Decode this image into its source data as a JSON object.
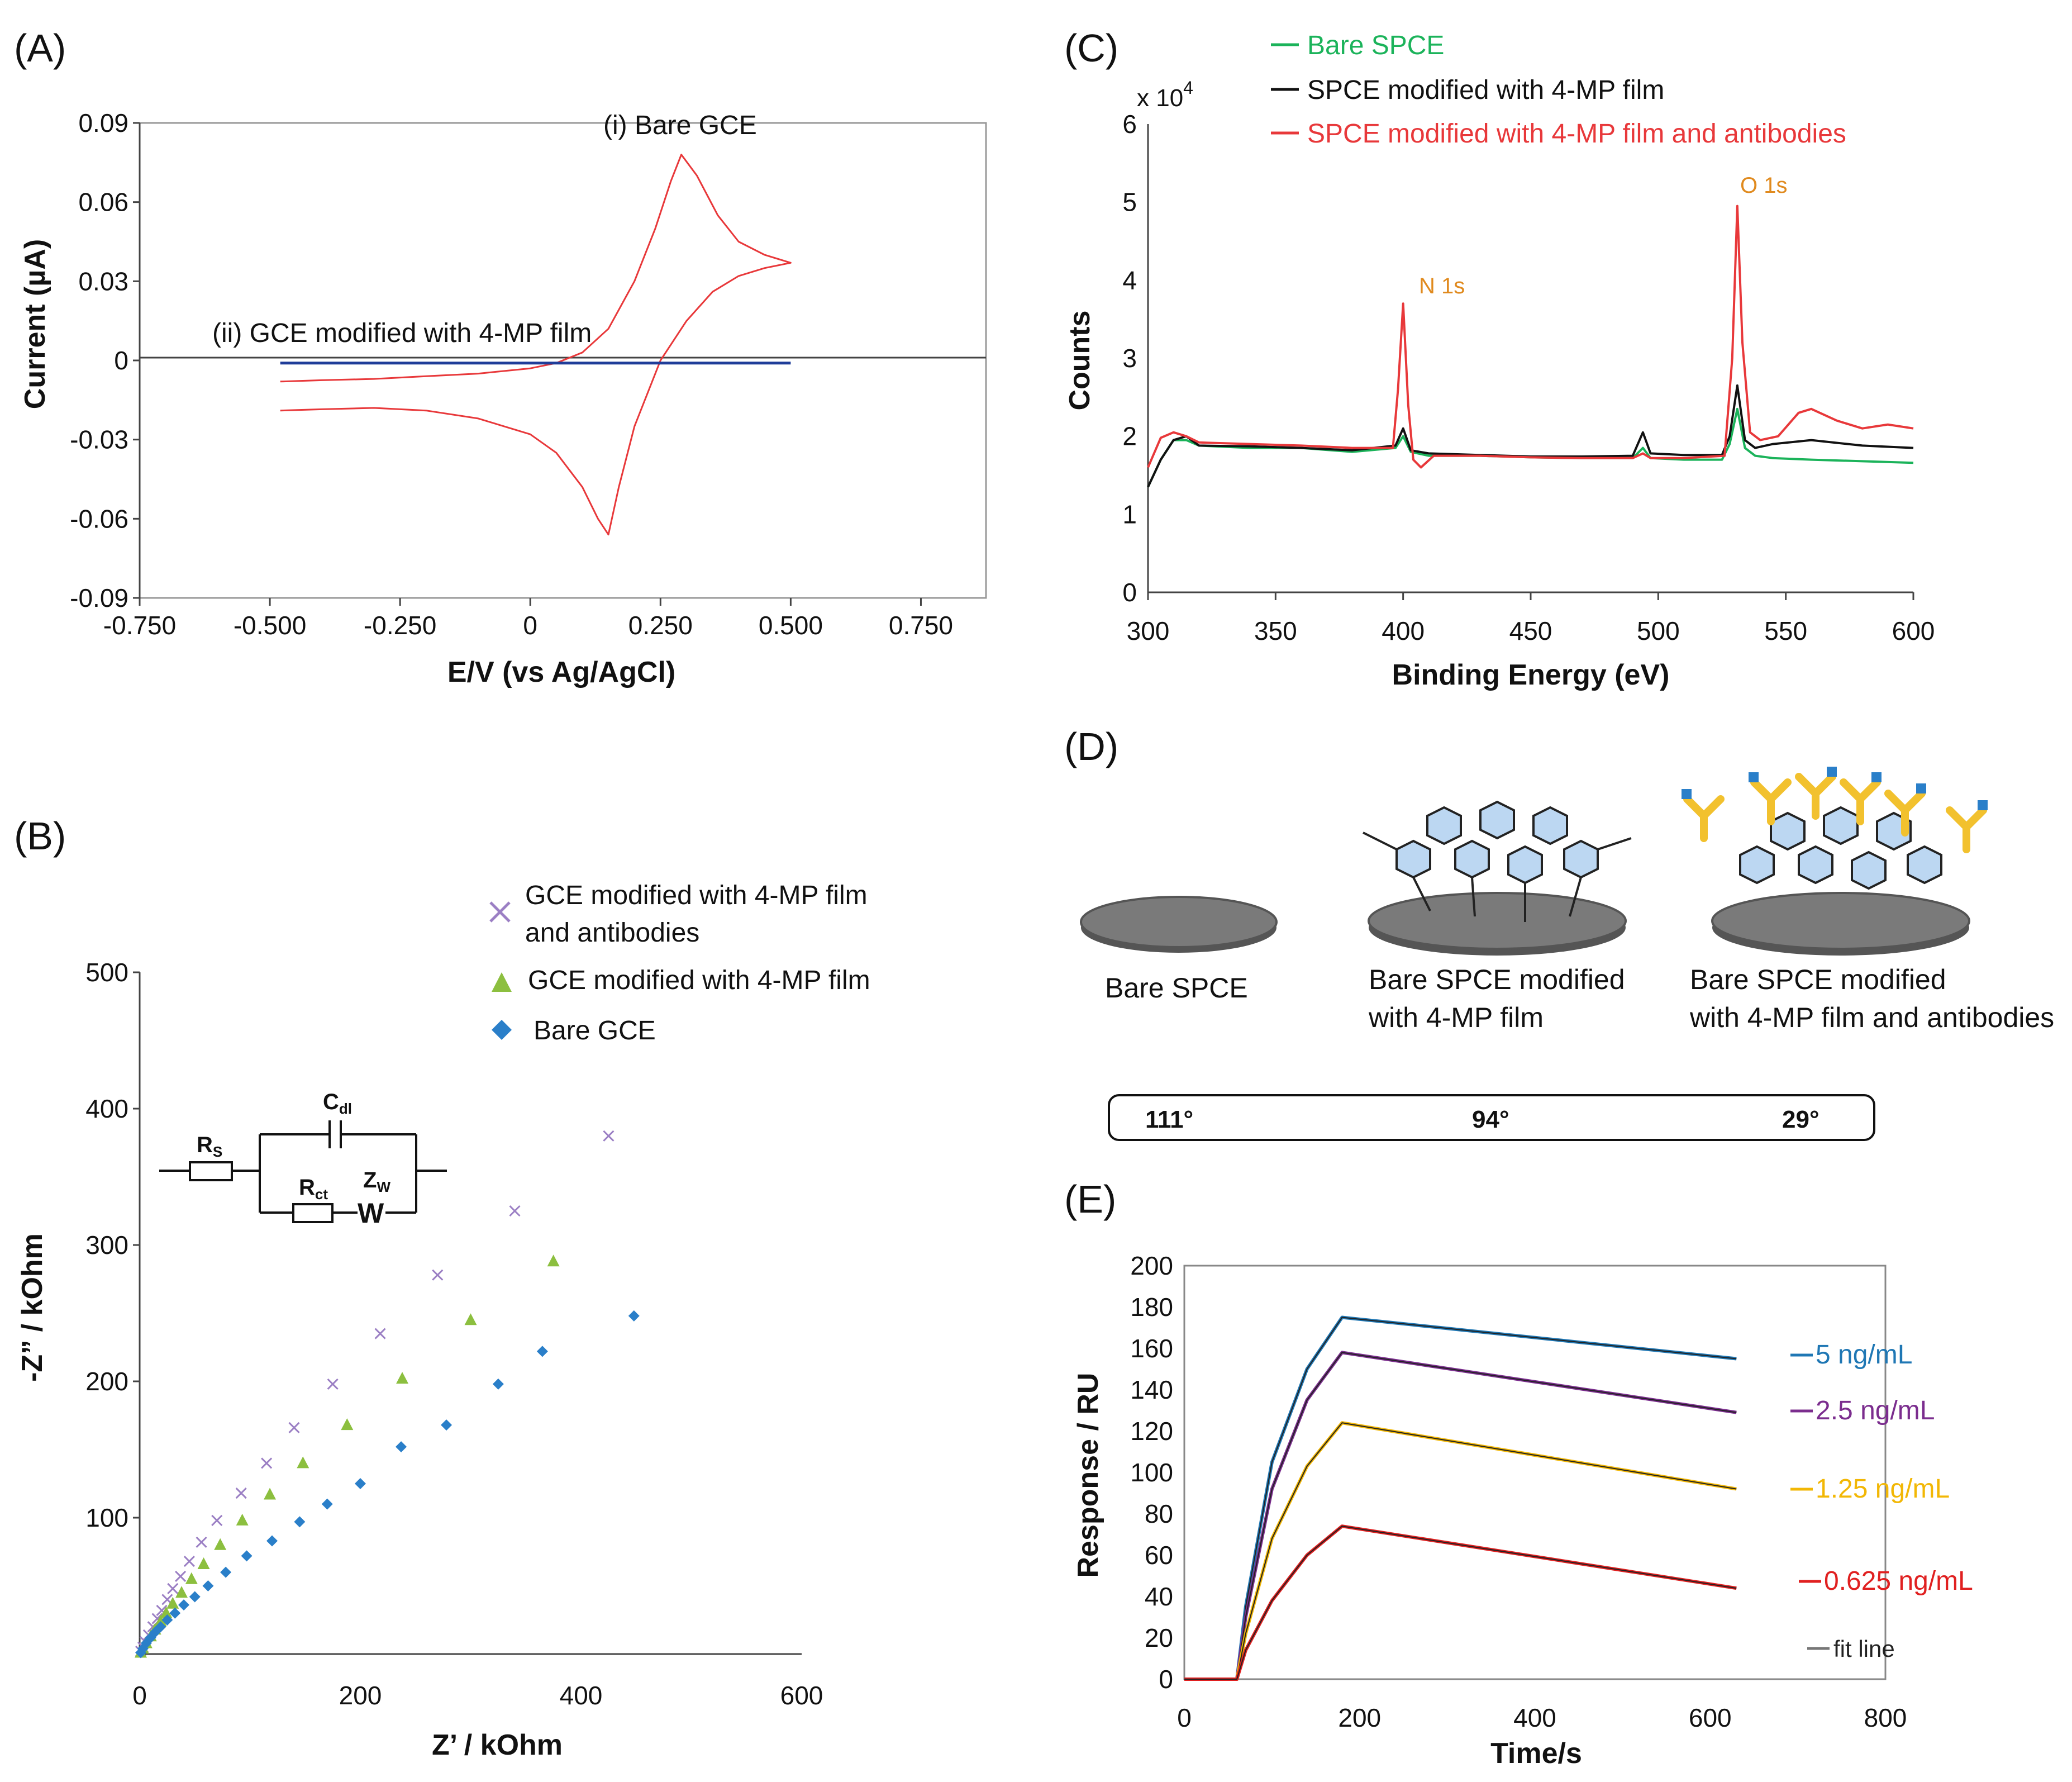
{
  "colors": {
    "red": "#e8383a",
    "blue": "#1f3d99",
    "green": "#1bb35a",
    "black": "#111111",
    "purple_x": "#9b7fc4",
    "green_tri": "#8cbf3f",
    "blue_diamond": "#2a7fc9",
    "orange": "#e08a1e",
    "e_blue": "#1f77b4",
    "e_purple": "#7b2d8e",
    "e_yellow": "#f2b705",
    "e_red": "#e02020",
    "e_black": "#222222",
    "e_fit": "#777777"
  },
  "panels": {
    "A": {
      "label": "(A)",
      "annotation_i": "(i) Bare GCE",
      "annotation_ii": "(ii) GCE modified with 4-MP film"
    },
    "B": {
      "label": "(B)",
      "legend": [
        "GCE modified with 4-MP film",
        "and antibodies",
        "GCE modified with 4-MP film",
        "Bare GCE"
      ],
      "circuit": {
        "rs": "R",
        "rs_sub": "S",
        "cdl": "C",
        "cdl_sub": "dl",
        "rct": "R",
        "rct_sub": "ct",
        "zw": "Z",
        "zw_sub": "W",
        "w": "W"
      }
    },
    "C": {
      "label": "(C)",
      "multiplier": "x 10",
      "multiplier_exp": "4",
      "peaks": [
        "N 1s",
        "O 1s"
      ]
    },
    "D": {
      "label": "(D)",
      "captions": [
        [
          "Bare SPCE"
        ],
        [
          "Bare SPCE modified",
          "with 4-MP film"
        ],
        [
          "Bare SPCE modified",
          "with 4-MP film and antibodies"
        ]
      ],
      "angles": [
        "111°",
        "94°",
        "29°"
      ]
    },
    "E": {
      "label": "(E)"
    }
  },
  "chart_data": [
    {
      "id": "A",
      "type": "line",
      "title": "",
      "xlabel": "E/V (vs Ag/AgCl)",
      "ylabel": "Current (µA)",
      "xlim": [
        -0.75,
        0.875
      ],
      "ylim": [
        -0.09,
        0.09
      ],
      "xticks": [
        "-0.750",
        "-0.500",
        "-0.250",
        "0",
        "0.250",
        "0.500",
        "0.750"
      ],
      "xtick_values": [
        -0.75,
        -0.5,
        -0.25,
        0,
        0.25,
        0.5,
        0.75
      ],
      "yticks": [
        "0.09",
        "0.06",
        "0.03",
        "0",
        "-0.03",
        "-0.06",
        "-0.09"
      ],
      "ytick_values": [
        0.09,
        0.06,
        0.03,
        0,
        -0.03,
        -0.06,
        -0.09
      ],
      "series": [
        {
          "name": "(i) Bare GCE",
          "color": "red",
          "x": [
            -0.48,
            -0.4,
            -0.3,
            -0.2,
            -0.1,
            0.0,
            0.05,
            0.1,
            0.15,
            0.2,
            0.24,
            0.27,
            0.29,
            0.32,
            0.36,
            0.4,
            0.45,
            0.5,
            0.45,
            0.4,
            0.35,
            0.3,
            0.25,
            0.2,
            0.17,
            0.15,
            0.13,
            0.1,
            0.05,
            0.0,
            -0.1,
            -0.2,
            -0.3,
            -0.4,
            -0.48
          ],
          "y": [
            -0.008,
            -0.0075,
            -0.007,
            -0.006,
            -0.005,
            -0.003,
            -0.001,
            0.003,
            0.012,
            0.03,
            0.05,
            0.068,
            0.078,
            0.07,
            0.055,
            0.045,
            0.04,
            0.037,
            0.035,
            0.032,
            0.026,
            0.015,
            0.0,
            -0.025,
            -0.048,
            -0.066,
            -0.06,
            -0.048,
            -0.035,
            -0.028,
            -0.022,
            -0.019,
            -0.018,
            -0.0185,
            -0.019
          ]
        },
        {
          "name": "(ii) GCE modified with 4-MP film",
          "color": "blue",
          "x": [
            -0.48,
            0.5
          ],
          "y": [
            -0.001,
            -0.001
          ]
        }
      ]
    },
    {
      "id": "B",
      "type": "scatter",
      "title": "",
      "xlabel": "Z’ / kOhm",
      "ylabel": "-Z” / kOhm",
      "xlim": [
        0,
        600
      ],
      "ylim": [
        0,
        500
      ],
      "xticks": [
        "0",
        "200",
        "400",
        "600"
      ],
      "xtick_values": [
        0,
        200,
        400,
        600
      ],
      "yticks": [
        "100",
        "200",
        "300",
        "400",
        "500"
      ],
      "ytick_values": [
        100,
        200,
        300,
        400,
        500
      ],
      "series": [
        {
          "name": "GCE modified with 4-MP film and antibodies",
          "marker": "x",
          "color": "purple_x",
          "x": [
            1,
            3,
            5,
            8,
            12,
            16,
            20,
            25,
            30,
            37,
            45,
            56,
            70,
            92,
            115,
            140,
            175,
            218,
            270,
            340,
            425
          ],
          "y": [
            2,
            5,
            9,
            14,
            20,
            26,
            32,
            40,
            48,
            57,
            68,
            82,
            98,
            118,
            140,
            166,
            198,
            235,
            278,
            325,
            380
          ]
        },
        {
          "name": "GCE modified with 4-MP film",
          "marker": "triangle",
          "color": "green_tri",
          "x": [
            1,
            3,
            6,
            10,
            14,
            19,
            24,
            30,
            38,
            47,
            58,
            73,
            93,
            118,
            148,
            188,
            238,
            300,
            375
          ],
          "y": [
            1,
            4,
            8,
            13,
            18,
            24,
            30,
            37,
            45,
            55,
            66,
            80,
            98,
            117,
            140,
            168,
            202,
            245,
            288
          ]
        },
        {
          "name": "Bare GCE",
          "marker": "diamond",
          "color": "blue_diamond",
          "x": [
            1,
            3,
            6,
            10,
            14,
            19,
            25,
            32,
            40,
            50,
            62,
            78,
            97,
            120,
            145,
            170,
            200,
            237,
            278,
            325,
            365,
            448
          ],
          "y": [
            1,
            4,
            8,
            12,
            16,
            20,
            25,
            30,
            36,
            42,
            50,
            60,
            72,
            83,
            97,
            110,
            125,
            152,
            168,
            198,
            222,
            248
          ]
        }
      ]
    },
    {
      "id": "C",
      "type": "line",
      "title": "",
      "xlabel": "Binding Energy (eV)",
      "ylabel": "Counts",
      "xlim": [
        300,
        600
      ],
      "ylim": [
        0,
        6
      ],
      "xticks": [
        "300",
        "350",
        "400",
        "450",
        "500",
        "550",
        "600"
      ],
      "xtick_values": [
        300,
        350,
        400,
        450,
        500,
        550,
        600
      ],
      "yticks": [
        "0",
        "1",
        "2",
        "3",
        "4",
        "5",
        "6"
      ],
      "ytick_values": [
        0,
        1,
        2,
        3,
        4,
        5,
        6
      ],
      "series": [
        {
          "name": "Bare SPCE",
          "color": "green",
          "x": [
            300,
            305,
            310,
            315,
            320,
            340,
            360,
            380,
            397,
            400,
            403,
            410,
            430,
            450,
            470,
            490,
            494,
            497,
            510,
            525,
            528,
            531,
            534,
            538,
            545,
            560,
            580,
            600
          ],
          "y": [
            1.35,
            1.7,
            1.95,
            1.95,
            1.88,
            1.85,
            1.85,
            1.8,
            1.85,
            2.0,
            1.8,
            1.75,
            1.75,
            1.73,
            1.72,
            1.72,
            1.85,
            1.72,
            1.7,
            1.7,
            1.9,
            2.35,
            1.85,
            1.75,
            1.72,
            1.7,
            1.68,
            1.66
          ]
        },
        {
          "name": "SPCE modified with 4-MP film",
          "color": "black",
          "x": [
            300,
            305,
            310,
            315,
            320,
            340,
            360,
            380,
            397,
            400,
            403,
            410,
            430,
            450,
            470,
            490,
            494,
            497,
            510,
            525,
            528,
            531,
            534,
            538,
            545,
            560,
            580,
            600
          ],
          "y": [
            1.35,
            1.7,
            1.95,
            2.0,
            1.88,
            1.87,
            1.85,
            1.82,
            1.88,
            2.1,
            1.82,
            1.78,
            1.76,
            1.74,
            1.74,
            1.75,
            2.05,
            1.78,
            1.76,
            1.76,
            2.0,
            2.65,
            1.95,
            1.85,
            1.9,
            1.95,
            1.88,
            1.85
          ]
        },
        {
          "name": "SPCE modified with 4-MP film and antibodies",
          "color": "red",
          "x": [
            300,
            305,
            310,
            315,
            320,
            340,
            360,
            380,
            396,
            398,
            400,
            402,
            404,
            407,
            412,
            430,
            450,
            470,
            490,
            494,
            497,
            510,
            526,
            529,
            531,
            533,
            536,
            540,
            547,
            555,
            560,
            570,
            580,
            590,
            600
          ],
          "y": [
            1.6,
            1.98,
            2.05,
            2.0,
            1.92,
            1.9,
            1.88,
            1.85,
            1.85,
            2.6,
            3.7,
            2.4,
            1.7,
            1.6,
            1.75,
            1.75,
            1.73,
            1.72,
            1.72,
            1.78,
            1.72,
            1.72,
            1.75,
            3.0,
            4.95,
            3.2,
            2.05,
            1.95,
            2.0,
            2.3,
            2.35,
            2.2,
            2.1,
            2.15,
            2.1
          ]
        }
      ]
    },
    {
      "id": "E",
      "type": "line",
      "title": "",
      "xlabel": "Time/s",
      "ylabel": "Response / RU",
      "xlim": [
        0,
        800
      ],
      "ylim": [
        0,
        200
      ],
      "xticks": [
        "0",
        "200",
        "400",
        "600",
        "800"
      ],
      "xtick_values": [
        0,
        200,
        400,
        600,
        800
      ],
      "yticks": [
        "0",
        "20",
        "40",
        "60",
        "80",
        "100",
        "120",
        "140",
        "160",
        "180",
        "200"
      ],
      "ytick_values": [
        0,
        20,
        40,
        60,
        80,
        100,
        120,
        140,
        160,
        180,
        200
      ],
      "series": [
        {
          "name": "5 ng/mL",
          "color": "e_blue",
          "x": [
            0,
            60,
            70,
            100,
            140,
            180,
            630
          ],
          "y": [
            0,
            0,
            35,
            105,
            150,
            175,
            155
          ]
        },
        {
          "name": "2.5 ng/mL",
          "color": "e_purple",
          "x": [
            0,
            60,
            70,
            100,
            140,
            180,
            630
          ],
          "y": [
            0,
            0,
            30,
            92,
            135,
            158,
            129
          ]
        },
        {
          "name": "1.25 ng/mL",
          "color": "e_yellow",
          "x": [
            0,
            60,
            70,
            100,
            140,
            180,
            630
          ],
          "y": [
            0,
            0,
            22,
            68,
            103,
            124,
            92
          ]
        },
        {
          "name": "0.625 ng/mL",
          "color": "e_red",
          "x": [
            0,
            60,
            70,
            100,
            140,
            180,
            630
          ],
          "y": [
            0,
            0,
            14,
            38,
            60,
            74,
            44
          ]
        }
      ],
      "fit_label": "fit line"
    }
  ]
}
